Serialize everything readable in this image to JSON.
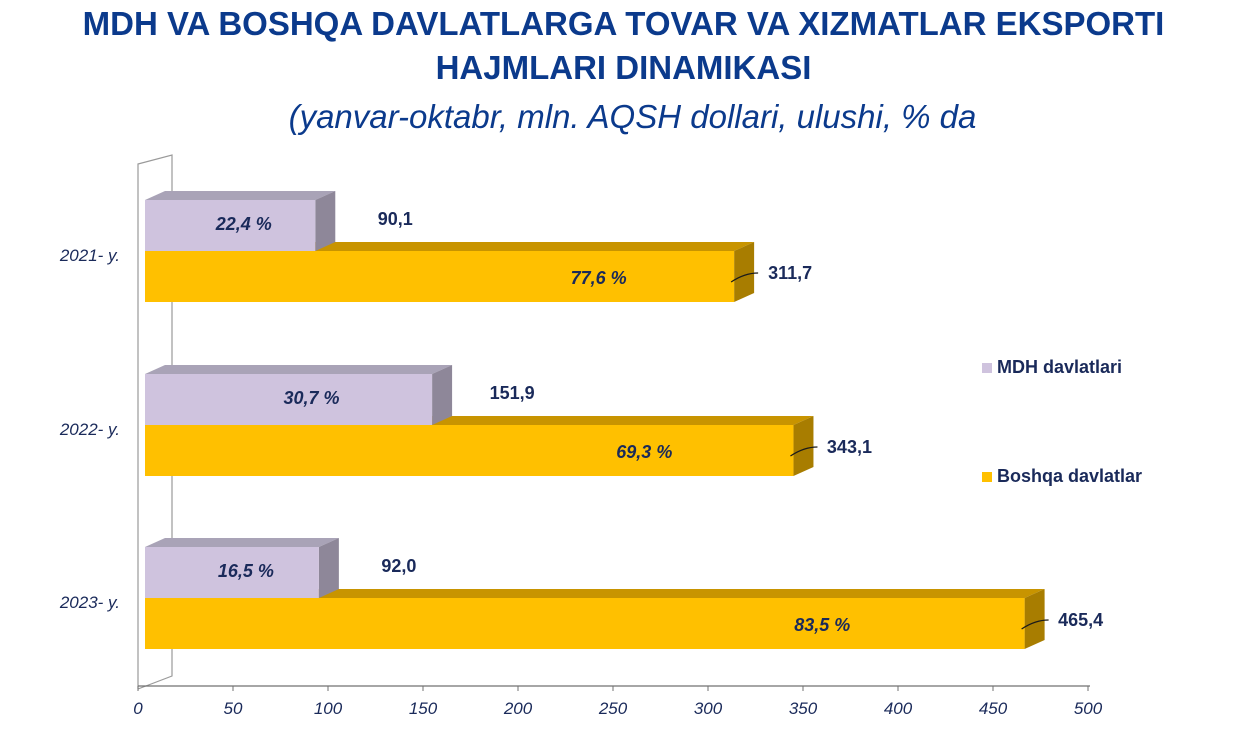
{
  "title": "MDH VA BOSHQA DAVLATLARGA TOVAR VA XIZMATLAR EKSPORTI HAJMLARI DINAMIKASI",
  "subtitle": "(yanvar-oktabr, mln. AQSH dollari, ulushi, % da",
  "legend": [
    {
      "name": "MDH davlatlari",
      "color": "#cfc3de"
    },
    {
      "name": "Boshqa davlatlar",
      "color": "#ffc000"
    }
  ],
  "chart_data": {
    "type": "bar",
    "orientation": "horizontal",
    "categories": [
      "2021- y.",
      "2022- y.",
      "2023- y."
    ],
    "series": [
      {
        "name": "MDH davlatlari",
        "values": [
          90.1,
          151.9,
          92.0
        ],
        "value_labels": [
          "90,1",
          "151,9",
          "92,0"
        ],
        "share_labels": [
          "22,4 %",
          "30,7 %",
          "16,5 %"
        ],
        "color": "#cfc3de"
      },
      {
        "name": "Boshqa davlatlar",
        "values": [
          311.7,
          343.1,
          465.4
        ],
        "value_labels": [
          "311,7",
          "343,1",
          "465,4"
        ],
        "share_labels": [
          "77,6 %",
          "69,3 %",
          "83,5 %"
        ],
        "color": "#ffc000"
      }
    ],
    "xlim": [
      0,
      500
    ],
    "xticks": [
      "0",
      "50",
      "100",
      "150",
      "200",
      "250",
      "300",
      "350",
      "400",
      "450",
      "500"
    ],
    "legend_position": "right",
    "grid": false
  }
}
